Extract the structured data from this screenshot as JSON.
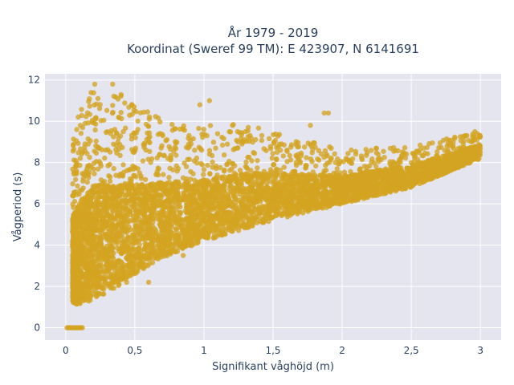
{
  "chart_data": {
    "type": "scatter",
    "title_line1": "År 1979 - 2019",
    "title_line2": "Koordinat (Sweref 99 TM): E 423907, N 6141691",
    "xlabel": "Signifikant våghöjd (m)",
    "ylabel": "Vågperiod (s)",
    "xlim": [
      -0.15,
      3.15
    ],
    "ylim": [
      -0.6,
      12.3
    ],
    "x_ticks": [
      0,
      0.5,
      1,
      1.5,
      2,
      2.5,
      3
    ],
    "x_tick_labels": [
      "0",
      "0,5",
      "1",
      "1,5",
      "2",
      "2,5",
      "3"
    ],
    "y_ticks": [
      0,
      2,
      4,
      6,
      8,
      10,
      12
    ],
    "y_tick_labels": [
      "0",
      "2",
      "4",
      "6",
      "8",
      "10",
      "12"
    ],
    "grid": true,
    "marker_color": "#d4a421",
    "background_color": "#e5e5f0",
    "envelope": [
      {
        "x": 0.05,
        "y_min": 1.2,
        "y_max": 9.0
      },
      {
        "x": 0.1,
        "y_min": 1.1,
        "y_max": 10.5
      },
      {
        "x": 0.2,
        "y_min": 1.4,
        "y_max": 11.7
      },
      {
        "x": 0.3,
        "y_min": 1.7,
        "y_max": 11.6
      },
      {
        "x": 0.4,
        "y_min": 2.1,
        "y_max": 11.3
      },
      {
        "x": 0.5,
        "y_min": 2.6,
        "y_max": 10.8
      },
      {
        "x": 0.7,
        "y_min": 3.4,
        "y_max": 10.2
      },
      {
        "x": 1.0,
        "y_min": 4.2,
        "y_max": 9.8
      },
      {
        "x": 1.3,
        "y_min": 4.8,
        "y_max": 9.9
      },
      {
        "x": 1.5,
        "y_min": 5.2,
        "y_max": 9.5
      },
      {
        "x": 2.0,
        "y_min": 6.0,
        "y_max": 8.6
      },
      {
        "x": 2.5,
        "y_min": 6.8,
        "y_max": 8.8
      },
      {
        "x": 3.0,
        "y_min": 8.2,
        "y_max": 9.5
      }
    ],
    "zero_period_cluster": {
      "x_min": 0.01,
      "x_max": 0.12,
      "y": 0
    },
    "sample_outliers": [
      {
        "x": 0.34,
        "y": 11.8
      },
      {
        "x": 0.21,
        "y": 11.8
      },
      {
        "x": 1.87,
        "y": 10.4
      },
      {
        "x": 1.9,
        "y": 10.4
      },
      {
        "x": 1.04,
        "y": 11.0
      },
      {
        "x": 0.97,
        "y": 10.8
      },
      {
        "x": 2.96,
        "y": 9.5
      },
      {
        "x": 1.77,
        "y": 9.8
      },
      {
        "x": 1.3,
        "y": 9.5
      },
      {
        "x": 0.44,
        "y": 2.2
      },
      {
        "x": 0.6,
        "y": 2.2
      },
      {
        "x": 0.85,
        "y": 3.5
      }
    ]
  }
}
